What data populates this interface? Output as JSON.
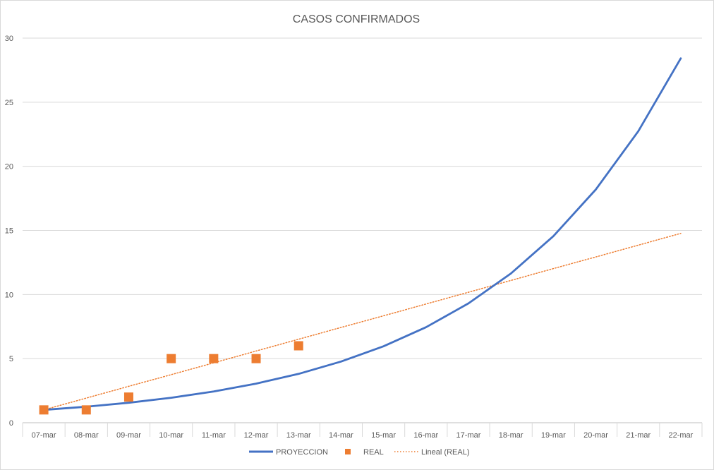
{
  "chart_data": {
    "type": "line",
    "title": "CASOS CONFIRMADOS",
    "xlabel": "",
    "ylabel": "",
    "categories": [
      "07-mar",
      "08-mar",
      "09-mar",
      "10-mar",
      "11-mar",
      "12-mar",
      "13-mar",
      "14-mar",
      "15-mar",
      "16-mar",
      "17-mar",
      "18-mar",
      "19-mar",
      "20-mar",
      "21-mar",
      "22-mar"
    ],
    "ylim": [
      0,
      30
    ],
    "yticks": [
      "0",
      "5",
      "10",
      "15",
      "20",
      "25",
      "30"
    ],
    "grid": true,
    "legend_position": "bottom",
    "series": [
      {
        "name": "PROYECCION",
        "kind": "line",
        "color": "#4472c4",
        "values": [
          1.0,
          1.25,
          1.56,
          1.95,
          2.44,
          3.05,
          3.81,
          4.77,
          5.96,
          7.45,
          9.31,
          11.64,
          14.55,
          18.19,
          22.74,
          28.42
        ]
      },
      {
        "name": "REAL",
        "kind": "marker",
        "color": "#ed7d31",
        "values": [
          1,
          1,
          2,
          5,
          5,
          5,
          6,
          null,
          null,
          null,
          null,
          null,
          null,
          null,
          null,
          null
        ]
      },
      {
        "name": "Lineal (REAL)",
        "kind": "trendline",
        "color": "#ed7d31",
        "values": [
          1.0,
          1.92,
          2.84,
          3.75,
          4.67,
          5.59,
          6.51,
          7.43,
          8.34,
          9.26,
          10.18,
          11.1,
          12.02,
          12.93,
          13.85,
          14.77
        ]
      }
    ]
  }
}
